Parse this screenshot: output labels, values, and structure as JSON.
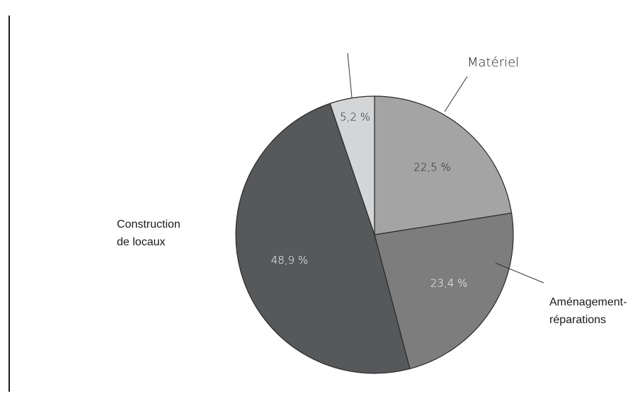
{
  "chart_data": {
    "type": "pie",
    "title": "",
    "slices": [
      {
        "label": "Matériel",
        "value": 22.5,
        "pct_label": "22,5 %",
        "color": "#a4a4a4",
        "text_color": "#222222"
      },
      {
        "label": "Aménagement-réparations",
        "label_lines": [
          "Aménagement-",
          "réparations"
        ],
        "value": 23.4,
        "pct_label": "23,4 %",
        "color": "#7d7d7d",
        "text_color": "#ffffff"
      },
      {
        "label": "Construction de locaux",
        "label_lines": [
          "Construction",
          "de locaux"
        ],
        "value": 48.9,
        "pct_label": "48,9 %",
        "color": "#57585a",
        "text_color": "#ffffff"
      },
      {
        "label": "",
        "value": 5.2,
        "pct_label": "5,2 %",
        "color": "#d4d5d7",
        "text_color": "#222222"
      }
    ]
  }
}
